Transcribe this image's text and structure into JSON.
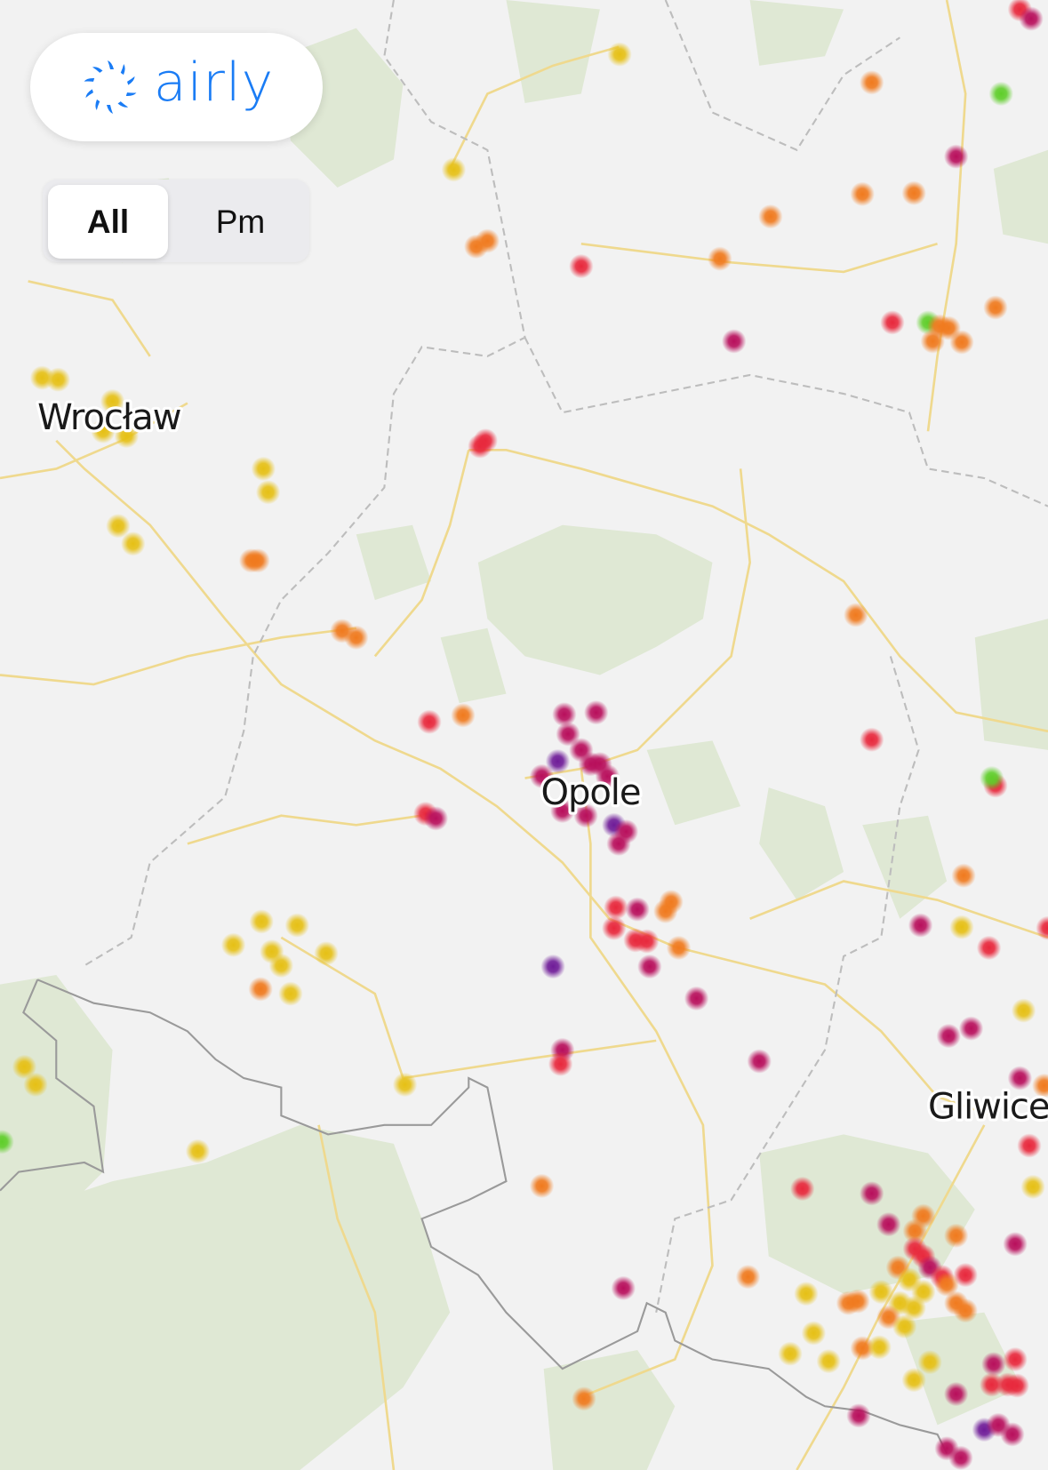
{
  "app": {
    "brand": "airly"
  },
  "filter": {
    "options": [
      "All",
      "Pm"
    ],
    "selected": "All"
  },
  "map": {
    "cities": [
      "Wrocław",
      "Opole",
      "Gliwice"
    ],
    "colors": {
      "background": "#f2f2f2",
      "forest": "#dfe8d4",
      "road": "#efd98e",
      "country_border": "#8c8c8c",
      "region_border": "#bdbdbd",
      "brand": "#1a7cf5"
    },
    "marker_levels": {
      "good": "#5fce2a",
      "moderate": "#e6c015",
      "poor": "#f07a1e",
      "bad": "#e8283c",
      "very_bad": "#b80f5c",
      "extreme": "#6f1c98"
    }
  }
}
